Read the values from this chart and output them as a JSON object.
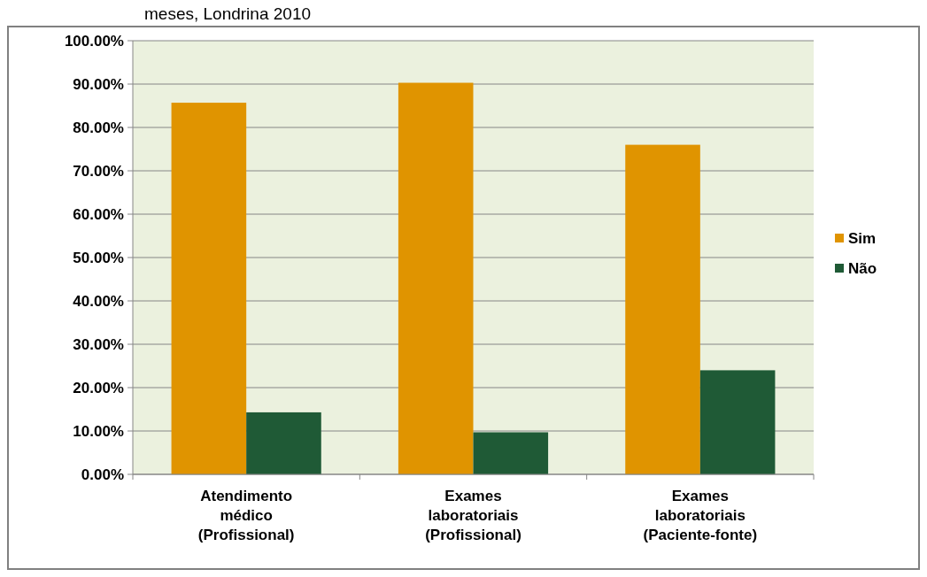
{
  "chart_data": {
    "type": "bar",
    "title": "meses, Londrina 2010",
    "categories": [
      "Atendimento médico (Profissional)",
      "Exames laboratoriais (Profissional)",
      "Exames laboratoriais (Paciente-fonte)"
    ],
    "series": [
      {
        "name": "Sim",
        "color": "#e09400",
        "values": [
          85.7,
          90.3,
          76.0
        ]
      },
      {
        "name": "Não",
        "color": "#1f5a36",
        "values": [
          14.3,
          9.7,
          24.0
        ]
      }
    ],
    "ylim": [
      0,
      100
    ],
    "yticks": [
      {
        "value": 0,
        "label": "0.00%"
      },
      {
        "value": 10,
        "label": "10.00%"
      },
      {
        "value": 20,
        "label": "20.00%"
      },
      {
        "value": 30,
        "label": "30.00%"
      },
      {
        "value": 40,
        "label": "40.00%"
      },
      {
        "value": 50,
        "label": "50.00%"
      },
      {
        "value": 60,
        "label": "60.00%"
      },
      {
        "value": 70,
        "label": "70.00%"
      },
      {
        "value": 80,
        "label": "80.00%"
      },
      {
        "value": 90,
        "label": "90.00%"
      },
      {
        "value": 100,
        "label": "100.00%"
      }
    ],
    "grid": "y",
    "legend": "right"
  }
}
